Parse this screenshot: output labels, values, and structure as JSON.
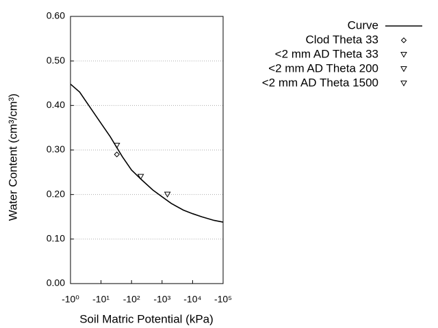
{
  "chart_data": {
    "type": "line",
    "x_label": "Soil Matric Potential (kPa)",
    "y_label": "Water Content (cm³/cm³)",
    "xscale": "log",
    "xlim": [
      1,
      100000
    ],
    "xticks": [
      {
        "value": 1,
        "label": "-10⁰"
      },
      {
        "value": 10,
        "label": "-10¹"
      },
      {
        "value": 100,
        "label": "-10²"
      },
      {
        "value": 1000,
        "label": "-10³"
      },
      {
        "value": 10000,
        "label": "-10⁴"
      },
      {
        "value": 100000,
        "label": "-10⁵"
      }
    ],
    "ylim": [
      0,
      0.6
    ],
    "yticks": [
      {
        "value": 0,
        "label": "0.00"
      },
      {
        "value": 0.1,
        "label": "0.10"
      },
      {
        "value": 0.2,
        "label": "0.20"
      },
      {
        "value": 0.3,
        "label": "0.30"
      },
      {
        "value": 0.4,
        "label": "0.40"
      },
      {
        "value": 0.5,
        "label": "0.50"
      },
      {
        "value": 0.6,
        "label": "0.60"
      }
    ],
    "grid": true,
    "legend": "right",
    "series": [
      {
        "name": "Curve",
        "color": "#000000",
        "style": "line",
        "x": [
          1,
          2,
          5,
          10,
          20,
          50,
          100,
          200,
          500,
          1000,
          2000,
          5000,
          10000,
          20000,
          50000,
          100000
        ],
        "values": [
          0.448,
          0.43,
          0.39,
          0.36,
          0.33,
          0.285,
          0.255,
          0.235,
          0.21,
          0.195,
          0.18,
          0.165,
          0.157,
          0.15,
          0.142,
          0.138
        ]
      },
      {
        "name": "Clod Theta 33",
        "color": "#000000",
        "style": "diamond",
        "x": [
          33
        ],
        "values": [
          0.29
        ]
      },
      {
        "name": "<2 mm AD Theta 33",
        "color": "#000000",
        "style": "triangle",
        "x": [
          33
        ],
        "values": [
          0.31
        ]
      },
      {
        "name": "<2 mm AD Theta 200",
        "color": "#000000",
        "style": "triangle",
        "x": [
          200
        ],
        "values": [
          0.24
        ]
      },
      {
        "name": "<2 mm AD Theta 1500",
        "color": "#000000",
        "style": "triangle",
        "x": [
          1500
        ],
        "values": [
          0.2
        ]
      }
    ]
  }
}
